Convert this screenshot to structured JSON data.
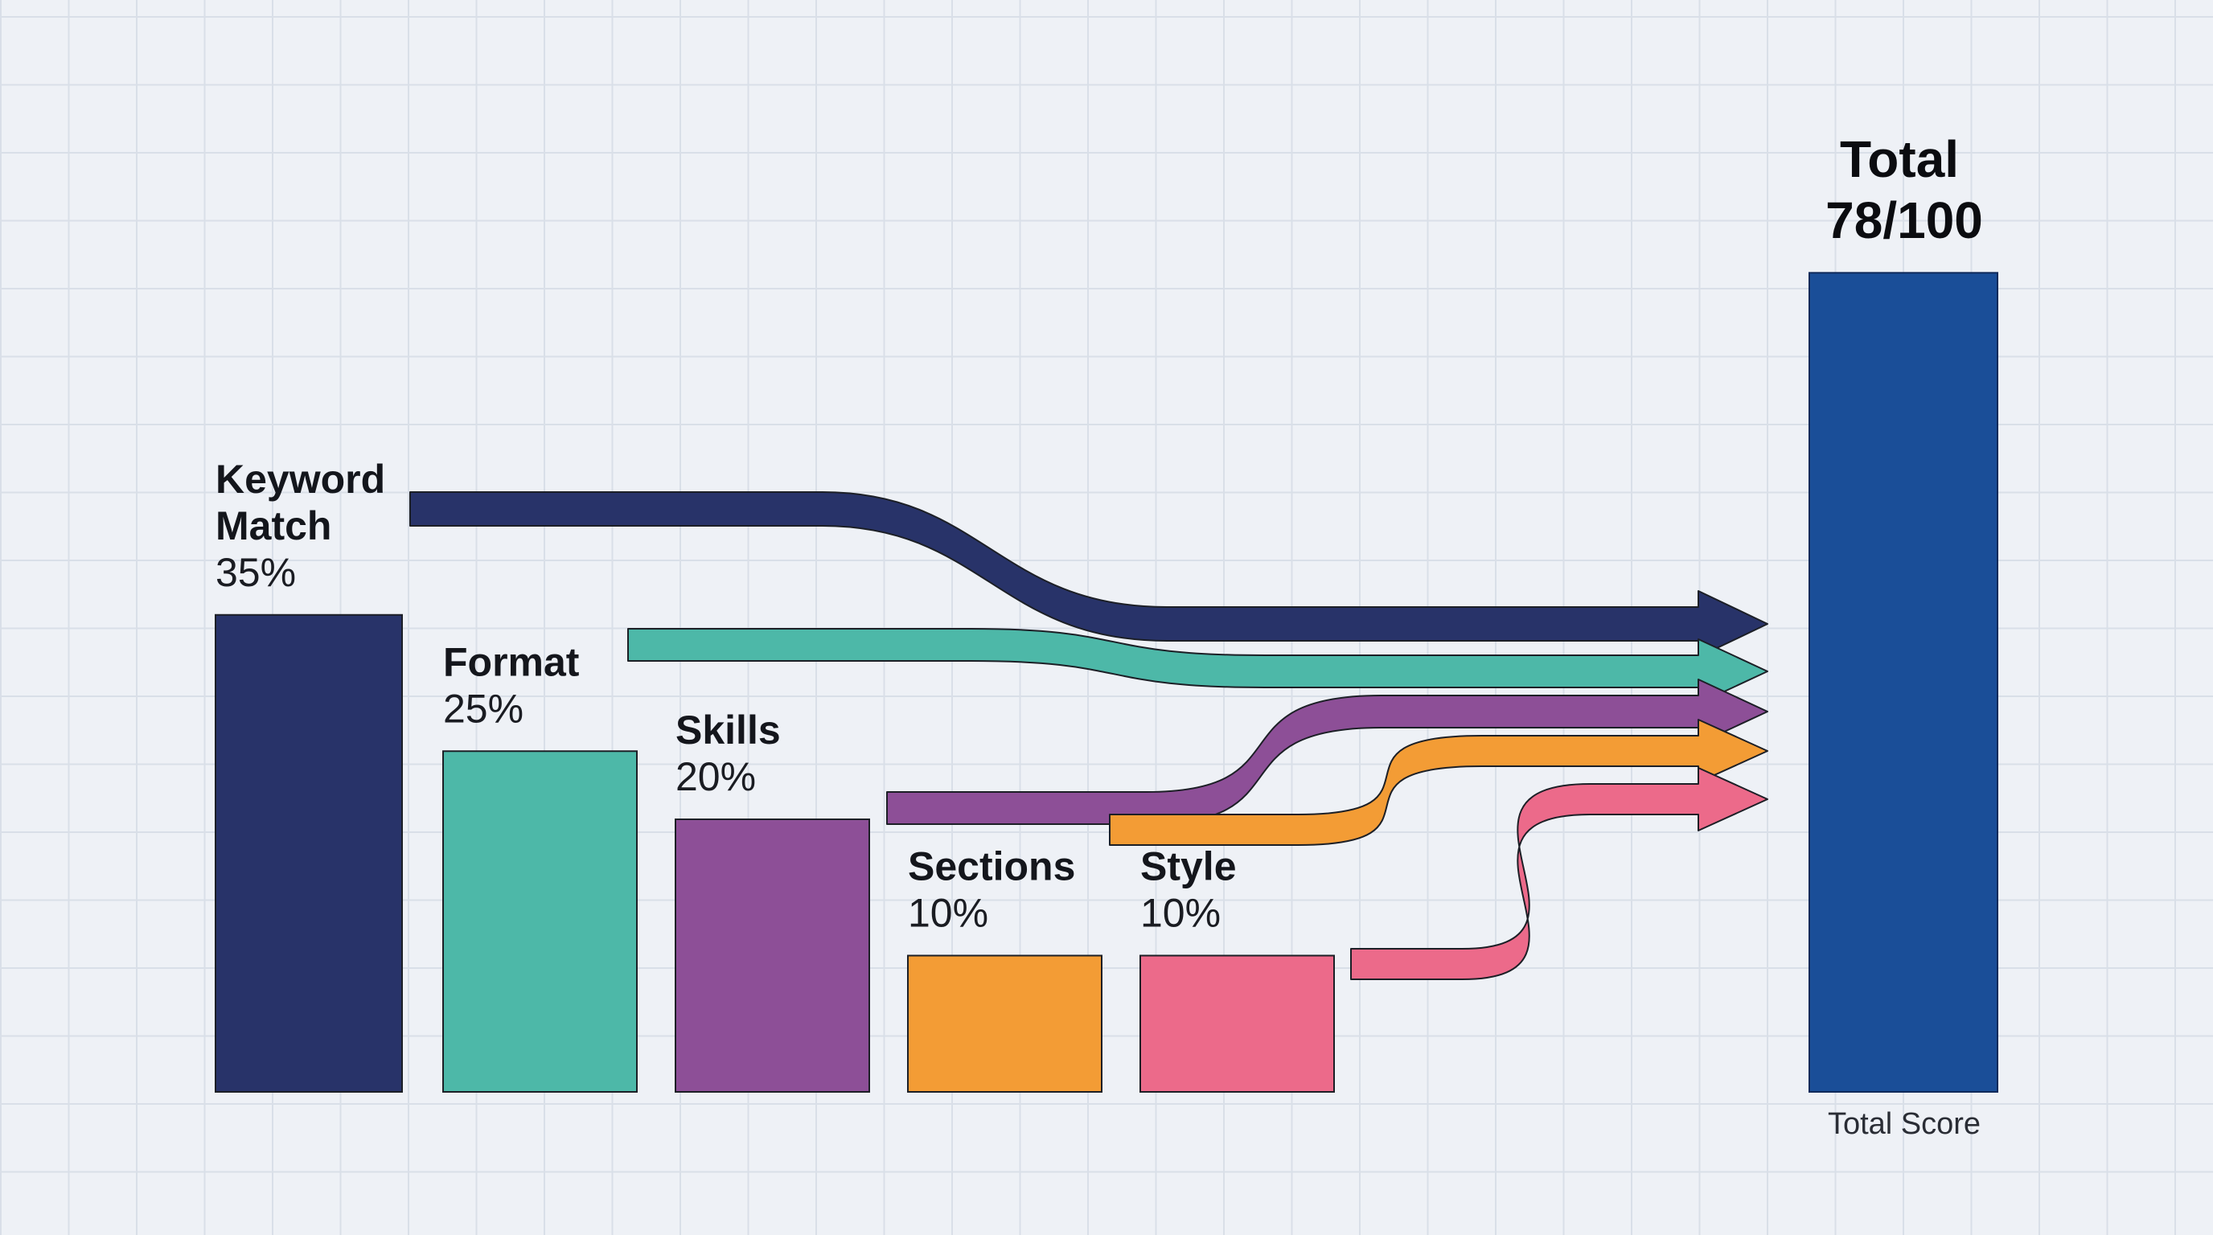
{
  "chart_data": {
    "type": "bar",
    "categories": [
      "Keyword Match",
      "Format",
      "Skills",
      "Sections",
      "Style"
    ],
    "values": [
      35,
      25,
      20,
      10,
      10
    ],
    "value_labels": [
      "35%",
      "25%",
      "20%",
      "10%",
      "10%"
    ],
    "colors": [
      "#283369",
      "#4db8a8",
      "#8d4f97",
      "#f39c35",
      "#ec6a8a"
    ],
    "total": {
      "heading": "Total",
      "value_label": "78/100",
      "value": 78,
      "caption": "Total Score",
      "color": "#1a4e98"
    },
    "ylim": [
      0,
      100
    ],
    "grid": true,
    "flows": "each category flows by arrow into the total bar"
  }
}
